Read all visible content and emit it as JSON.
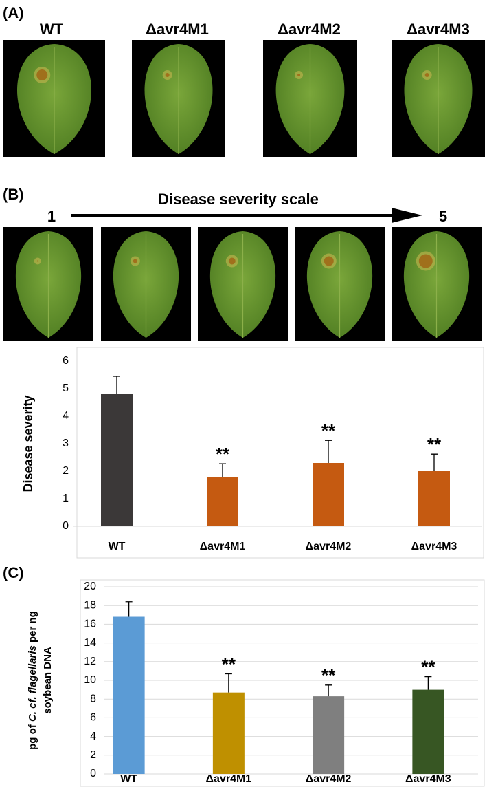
{
  "panel_labels": [
    "(A)",
    "(B)",
    "(C)"
  ],
  "photo_labels": [
    "WT",
    "Δavr4M1",
    "Δavr4M2",
    "Δavr4M3"
  ],
  "scale": {
    "title": "Disease severity scale",
    "start": "1",
    "end": "5"
  },
  "chart_data": [
    {
      "type": "bar",
      "ylabel": "Disease severity",
      "categories": [
        "WT",
        "Δavr4M1",
        "Δavr4M2",
        "Δavr4M3"
      ],
      "values": [
        4.8,
        1.8,
        2.3,
        2.0
      ],
      "errors": [
        0.65,
        0.47,
        0.82,
        0.62
      ],
      "colors": [
        "#3b3838",
        "#c55a11",
        "#c55a11",
        "#c55a11"
      ],
      "significance": [
        null,
        "**",
        "**",
        "**"
      ],
      "ylim": [
        0,
        6
      ],
      "yticks": [
        0,
        1,
        2,
        3,
        4,
        5,
        6
      ],
      "grid": false
    },
    {
      "type": "bar",
      "ylabel_parts": [
        "pg of ",
        "C. cf. flagellaris",
        " per ng"
      ],
      "ylabel_line2": "soybean DNA",
      "categories": [
        "WT",
        "Δavr4M1",
        "Δavr4M2",
        "Δavr4M3"
      ],
      "values": [
        16.8,
        8.7,
        8.3,
        9.0
      ],
      "errors": [
        1.6,
        2.0,
        1.2,
        1.4
      ],
      "colors": [
        "#5b9bd5",
        "#bf9000",
        "#7f7f7f",
        "#375623"
      ],
      "significance": [
        null,
        "**",
        "**",
        "**"
      ],
      "ylim": [
        0,
        20
      ],
      "yticks": [
        0,
        2,
        4,
        6,
        8,
        10,
        12,
        14,
        16,
        18,
        20
      ],
      "grid": true
    }
  ]
}
